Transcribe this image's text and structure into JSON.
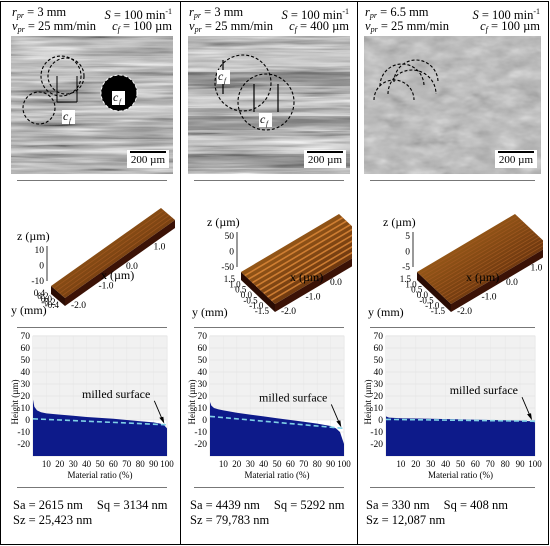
{
  "panels": [
    {
      "header": {
        "rpr": "3 mm",
        "S": "100 min",
        "vpr": "25 mm/min",
        "cf": "100 µm"
      },
      "scale_label": "200 µm",
      "micro_labels": [
        "c",
        "c"
      ],
      "topo": {
        "z_axis": "z (µm)",
        "z_ticks": [
          "10",
          "0",
          "-10"
        ],
        "y_axis": "y (mm)",
        "y_ticks": [
          "0.4",
          "0.2",
          "0.0",
          "-0.2",
          "-0.4"
        ],
        "x_axis": "x (µm)",
        "x_ticks": [
          "2.0",
          "1.5",
          "1.0",
          "0.5",
          "0.0",
          "-0.5",
          "-1.0",
          "-1.5",
          "-2.0"
        ]
      },
      "stats": {
        "sa": "Sa = 2615 nm",
        "sq": "Sq = 3134 nm",
        "sz": "Sz = 25,423 nm"
      }
    },
    {
      "header": {
        "rpr": "3 mm",
        "S": "100 min",
        "vpr": "25 mm/min",
        "cf": "400 µm"
      },
      "scale_label": "200 µm",
      "micro_labels": [
        "c",
        "c"
      ],
      "topo": {
        "z_axis": "z (µm)",
        "z_ticks": [
          "50",
          "0",
          "-50"
        ],
        "y_axis": "y (mm)",
        "y_ticks": [
          "1.5",
          "1.0",
          "0.5",
          "0.0",
          "-0.5",
          "-1.0",
          "-1.5"
        ],
        "x_axis": "x (µm)",
        "x_ticks": [
          "2.0",
          "1.5",
          "1.0",
          "0.5",
          "0.0",
          "-0.5",
          "-1.0",
          "-1.5",
          "-2.0"
        ]
      },
      "stats": {
        "sa": "Sa = 4439 nm",
        "sq": "Sq = 5292 nm",
        "sz": "Sz = 79,783 nm"
      }
    },
    {
      "header": {
        "rpr": "6.5 mm",
        "S": "100 min",
        "vpr": "25 mm/min",
        "cf": "100 µm"
      },
      "scale_label": "200 µm",
      "micro_labels": [],
      "topo": {
        "z_axis": "z (µm)",
        "z_ticks": [
          "5",
          "0",
          "-5"
        ],
        "y_axis": "y (mm)",
        "y_ticks": [
          "1.5",
          "1.0",
          "0.5",
          "0.0",
          "-0.5",
          "-1.0",
          "-1.5"
        ],
        "x_axis": "x (µm)",
        "x_ticks": [
          "2.0",
          "1.5",
          "1.0",
          "0.5",
          "0.0",
          "-0.5",
          "-1.0",
          "-1.5",
          "-2.0"
        ]
      },
      "stats": {
        "sa": "Sa = 330 nm",
        "sq": "Sq = 408 nm",
        "sz": "Sz = 12,087 nm"
      }
    }
  ],
  "header_labels": {
    "r": "r",
    "r_sub": "pr",
    "v": "v",
    "v_sub": "pr",
    "S": "S",
    "c": "c",
    "c_sub": "f",
    "eq": " = ",
    "sup": "-1"
  },
  "chart_data": [
    {
      "type": "area",
      "title": "",
      "xlabel": "Material ratio (%)",
      "ylabel": "Height (µm)",
      "xlim": [
        0,
        100
      ],
      "ylim": [
        -30,
        70
      ],
      "xticks": [
        10,
        20,
        30,
        40,
        50,
        60,
        70,
        80,
        90,
        100
      ],
      "yticks": [
        70,
        60,
        50,
        40,
        30,
        20,
        10,
        0,
        -10,
        -20
      ],
      "annotation": "milled surface",
      "series": [
        {
          "x": [
            0,
            1,
            3,
            6,
            10,
            20,
            30,
            40,
            50,
            60,
            70,
            80,
            90,
            95,
            98,
            100
          ],
          "y": [
            17,
            11,
            8,
            6.5,
            5.5,
            4.5,
            3.5,
            2.5,
            1.8,
            1,
            0,
            -1,
            -2,
            -3,
            -4.5,
            -7
          ]
        }
      ],
      "reference_line": {
        "x": [
          0,
          100
        ],
        "y": [
          1,
          -4
        ]
      }
    },
    {
      "type": "area",
      "title": "",
      "xlabel": "Material ratio (%)",
      "ylabel": "Height (µm)",
      "xlim": [
        0,
        100
      ],
      "ylim": [
        -30,
        70
      ],
      "xticks": [
        10,
        20,
        30,
        40,
        50,
        60,
        70,
        80,
        90,
        100
      ],
      "yticks": [
        70,
        60,
        50,
        40,
        30,
        20,
        10,
        0,
        -10,
        -20
      ],
      "annotation": "milled surface",
      "series": [
        {
          "x": [
            0,
            1,
            3,
            6,
            10,
            20,
            30,
            40,
            50,
            60,
            70,
            80,
            90,
            94,
            97,
            100
          ],
          "y": [
            15,
            12,
            10,
            9,
            8,
            6,
            4.5,
            3,
            1.5,
            0,
            -1.5,
            -3,
            -5,
            -7,
            -10,
            -20
          ]
        }
      ],
      "reference_line": {
        "x": [
          0,
          100
        ],
        "y": [
          3,
          -7
        ]
      }
    },
    {
      "type": "area",
      "title": "",
      "xlabel": "Material ratio (%)",
      "ylabel": "Height (µm)",
      "xlim": [
        0,
        100
      ],
      "ylim": [
        -30,
        70
      ],
      "xticks": [
        10,
        20,
        30,
        40,
        50,
        60,
        70,
        80,
        90,
        100
      ],
      "yticks": [
        70,
        60,
        50,
        40,
        30,
        20,
        10,
        0,
        -10,
        -20
      ],
      "annotation": "milled surface",
      "series": [
        {
          "x": [
            0,
            2,
            10,
            30,
            50,
            70,
            90,
            97,
            100
          ],
          "y": [
            3,
            2,
            1.5,
            1,
            0.5,
            0,
            -0.5,
            -1,
            -2
          ]
        }
      ],
      "reference_line": {
        "x": [
          0,
          100
        ],
        "y": [
          0.5,
          -1
        ]
      }
    }
  ]
}
